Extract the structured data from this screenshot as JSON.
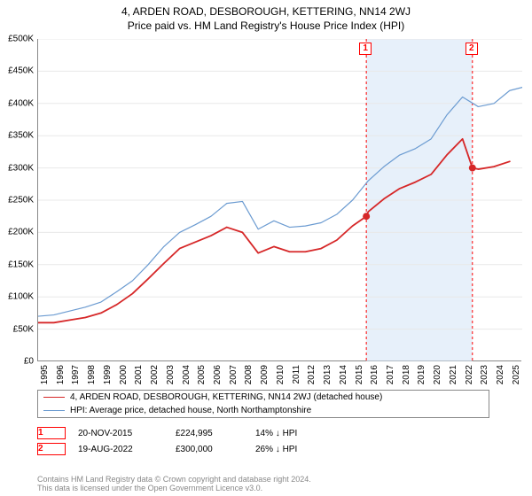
{
  "title": "4, ARDEN ROAD, DESBOROUGH, KETTERING, NN14 2WJ",
  "subtitle": "Price paid vs. HM Land Registry's House Price Index (HPI)",
  "chart": {
    "type": "line",
    "x_years": [
      1995,
      1996,
      1997,
      1998,
      1999,
      2000,
      2001,
      2002,
      2003,
      2004,
      2005,
      2006,
      2007,
      2008,
      2009,
      2010,
      2011,
      2012,
      2013,
      2014,
      2015,
      2016,
      2017,
      2018,
      2019,
      2020,
      2021,
      2022,
      2023,
      2024,
      2025
    ],
    "xlim": [
      1995,
      2025.8
    ],
    "ylim": [
      0,
      500000
    ],
    "ytick_step": 50000,
    "ytick_labels": [
      "£0",
      "£50K",
      "£100K",
      "£150K",
      "£200K",
      "£250K",
      "£300K",
      "£350K",
      "£400K",
      "£450K",
      "£500K"
    ],
    "background_color": "#ffffff",
    "grid_color": "#e8e8e8",
    "bands": [
      {
        "from": 2015.88,
        "to": 2022.63,
        "color": "#d3e4f5",
        "opacity": 0.55
      }
    ],
    "markers": {
      "vlines": [
        {
          "year": 2015.88,
          "label": "1",
          "color": "#ff0000",
          "dash": "3,3"
        },
        {
          "year": 2022.63,
          "label": "2",
          "color": "#ff0000",
          "dash": "3,3"
        }
      ],
      "label_box_border": "#ff0000",
      "label_box_text": "#ff0000"
    },
    "series": {
      "property": {
        "label": "4, ARDEN ROAD, DESBOROUGH, KETTERING, NN14 2WJ (detached house)",
        "color": "#d62728",
        "width": 1.8,
        "data": [
          [
            1995,
            60000
          ],
          [
            1996,
            60000
          ],
          [
            1997,
            64000
          ],
          [
            1998,
            68000
          ],
          [
            1999,
            75000
          ],
          [
            2000,
            88000
          ],
          [
            2001,
            105000
          ],
          [
            2002,
            128000
          ],
          [
            2003,
            152000
          ],
          [
            2004,
            175000
          ],
          [
            2005,
            185000
          ],
          [
            2006,
            195000
          ],
          [
            2007,
            208000
          ],
          [
            2008,
            200000
          ],
          [
            2009,
            168000
          ],
          [
            2010,
            178000
          ],
          [
            2011,
            170000
          ],
          [
            2012,
            170000
          ],
          [
            2013,
            175000
          ],
          [
            2014,
            188000
          ],
          [
            2015,
            210000
          ],
          [
            2015.88,
            224995
          ],
          [
            2016,
            232000
          ],
          [
            2017,
            252000
          ],
          [
            2018,
            268000
          ],
          [
            2019,
            278000
          ],
          [
            2020,
            290000
          ],
          [
            2021,
            320000
          ],
          [
            2022,
            345000
          ],
          [
            2022.63,
            300000
          ],
          [
            2023,
            298000
          ],
          [
            2024,
            302000
          ],
          [
            2025,
            310000
          ]
        ]
      },
      "hpi": {
        "label": "HPI: Average price, detached house, North Northamptonshire",
        "color": "#6b9bd1",
        "width": 1.2,
        "data": [
          [
            1995,
            70000
          ],
          [
            1996,
            72000
          ],
          [
            1997,
            78000
          ],
          [
            1998,
            84000
          ],
          [
            1999,
            92000
          ],
          [
            2000,
            108000
          ],
          [
            2001,
            125000
          ],
          [
            2002,
            150000
          ],
          [
            2003,
            178000
          ],
          [
            2004,
            200000
          ],
          [
            2005,
            212000
          ],
          [
            2006,
            225000
          ],
          [
            2007,
            245000
          ],
          [
            2008,
            248000
          ],
          [
            2009,
            205000
          ],
          [
            2010,
            218000
          ],
          [
            2011,
            208000
          ],
          [
            2012,
            210000
          ],
          [
            2013,
            215000
          ],
          [
            2014,
            228000
          ],
          [
            2015,
            250000
          ],
          [
            2016,
            280000
          ],
          [
            2017,
            302000
          ],
          [
            2018,
            320000
          ],
          [
            2019,
            330000
          ],
          [
            2020,
            345000
          ],
          [
            2021,
            382000
          ],
          [
            2022,
            410000
          ],
          [
            2023,
            395000
          ],
          [
            2024,
            400000
          ],
          [
            2025,
            420000
          ],
          [
            2025.8,
            425000
          ]
        ]
      }
    },
    "dots": [
      {
        "year": 2015.88,
        "value": 224995,
        "color": "#d62728",
        "radius": 4
      },
      {
        "year": 2022.63,
        "value": 300000,
        "color": "#d62728",
        "radius": 4
      }
    ]
  },
  "legend": {
    "border_color": "#888888"
  },
  "sales": [
    {
      "id": "1",
      "date": "20-NOV-2015",
      "price": "£224,995",
      "vs_hpi": "14% ↓ HPI"
    },
    {
      "id": "2",
      "date": "19-AUG-2022",
      "price": "£300,000",
      "vs_hpi": "26% ↓ HPI"
    }
  ],
  "footer": {
    "line1": "Contains HM Land Registry data © Crown copyright and database right 2024.",
    "line2": "This data is licensed under the Open Government Licence v3.0."
  },
  "fonts": {
    "title_size": 12,
    "axis_size": 10,
    "legend_size": 10,
    "footer_size": 9
  },
  "colors": {
    "axis": "#888888",
    "text": "#000000",
    "footer_text": "#888888"
  }
}
